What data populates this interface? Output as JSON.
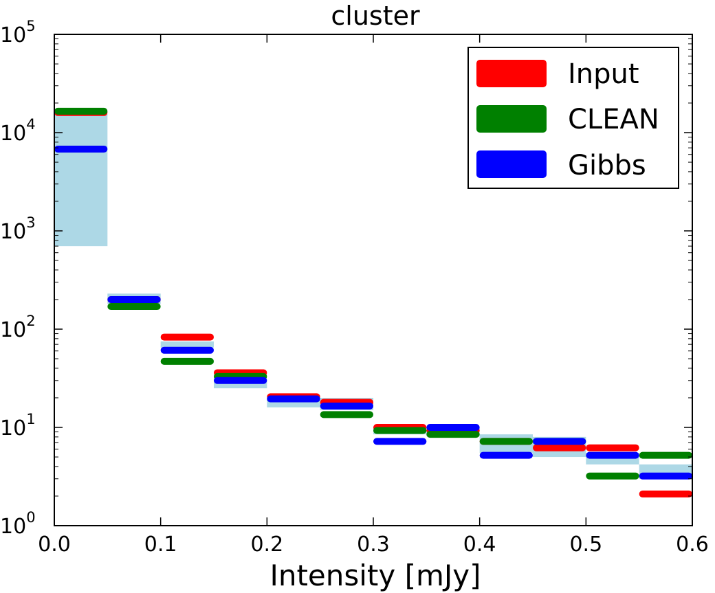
{
  "chart_data": {
    "type": "step-bar",
    "title": "cluster",
    "xlabel": "Intensity [mJy]",
    "ylabel": "",
    "xlim": [
      0.0,
      0.6
    ],
    "ylim": [
      1,
      100000
    ],
    "yscale": "log",
    "x_tick_labels": [
      "0.0",
      "0.1",
      "0.2",
      "0.3",
      "0.4",
      "0.5",
      "0.6"
    ],
    "y_ticks": [
      {
        "base": "10",
        "exp": "0"
      },
      {
        "base": "10",
        "exp": "1"
      },
      {
        "base": "10",
        "exp": "2"
      },
      {
        "base": "10",
        "exp": "3"
      },
      {
        "base": "10",
        "exp": "4"
      },
      {
        "base": "10",
        "exp": "5"
      }
    ],
    "bin_edges": [
      0.0,
      0.05,
      0.1,
      0.15,
      0.2,
      0.25,
      0.3,
      0.35,
      0.4,
      0.45,
      0.5,
      0.55,
      0.6
    ],
    "band": {
      "name": "uncertainty band",
      "color": "#add8e6",
      "low": [
        700,
        180,
        65,
        25,
        16,
        15,
        8.5,
        8.2,
        5.5,
        5.0,
        4.2,
        3.0
      ],
      "high": [
        15500,
        230,
        75,
        30,
        20,
        20,
        10,
        10,
        8.5,
        8.0,
        5.5,
        4.2
      ]
    },
    "series": [
      {
        "name": "Input",
        "color": "#ff0000",
        "values": [
          16000,
          200,
          83,
          36,
          20.5,
          18,
          10,
          9.3,
          7.2,
          6.2,
          6.2,
          2.1
        ]
      },
      {
        "name": "CLEAN",
        "color": "#008000",
        "values": [
          16500,
          170,
          47,
          33,
          19.5,
          13.5,
          9.3,
          8.5,
          7.2,
          7.2,
          3.2,
          5.2
        ]
      },
      {
        "name": "Gibbs",
        "color": "#0000ff",
        "values": [
          6800,
          200,
          61,
          30,
          19.5,
          16.5,
          7.2,
          10,
          5.2,
          7.2,
          5.2,
          3.2
        ]
      }
    ],
    "legend": {
      "position": "top-right",
      "entries": [
        "Input",
        "CLEAN",
        "Gibbs"
      ]
    }
  }
}
